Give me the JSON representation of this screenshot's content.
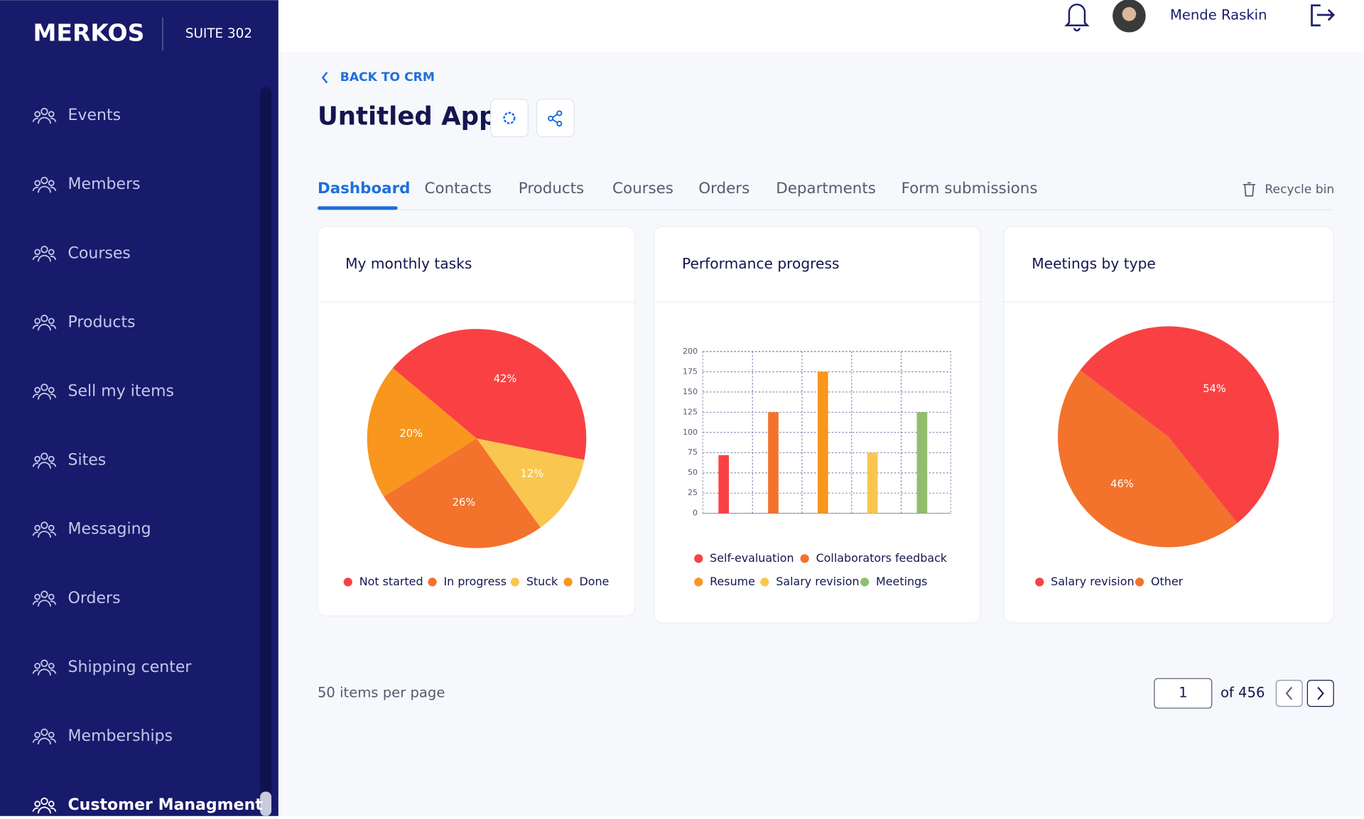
{
  "sidebar": {
    "brand": "MERKOS",
    "suite": "SUITE 302",
    "items": [
      "Events",
      "Members",
      "Courses",
      "Products",
      "Sell my items",
      "Sites",
      "Messaging",
      "Orders",
      "Shipping center",
      "Memberships",
      "Customer Managment"
    ]
  },
  "header": {
    "user": "Mende Raskin"
  },
  "back": "BACK TO CRM",
  "app_title": "Untitled App",
  "tabs": [
    "Dashboard",
    "Contacts",
    "Products",
    "Courses",
    "Orders",
    "Departments",
    "Form submissions"
  ],
  "recycle": "Recycle bin",
  "chart_data": [
    {
      "type": "pie",
      "title": "My monthly tasks",
      "categories": [
        "Not started",
        "In progress",
        "Stuck",
        "Done"
      ],
      "values": [
        42,
        26,
        12,
        20
      ],
      "value_labels": [
        "42%",
        "26%",
        "12%",
        "20%"
      ],
      "colors": [
        "#f94144",
        "#f3722c",
        "#f9c74f",
        "#f8961e"
      ]
    },
    {
      "type": "bar",
      "title": "Performance progress",
      "categories": [
        "Self-evaluation",
        "Collaborators feedback",
        "Resume",
        "Salary revision",
        "Meetings"
      ],
      "values": [
        72,
        125,
        175,
        75,
        125
      ],
      "colors": [
        "#f94144",
        "#f3722c",
        "#f8961e",
        "#f9c74f",
        "#90be6d"
      ],
      "ylim": [
        0,
        200
      ],
      "yticks": [
        0,
        25,
        50,
        75,
        100,
        125,
        150,
        175,
        200
      ],
      "grid": true
    },
    {
      "type": "pie",
      "title": "Meetings by type",
      "categories": [
        "Salary revision",
        "Other"
      ],
      "values": [
        54,
        46
      ],
      "value_labels": [
        "54%",
        "46%"
      ],
      "colors": [
        "#f94144",
        "#f3722c"
      ]
    }
  ],
  "pagination": {
    "per_page": "50 items per page",
    "page": "1",
    "of": "of 456"
  }
}
